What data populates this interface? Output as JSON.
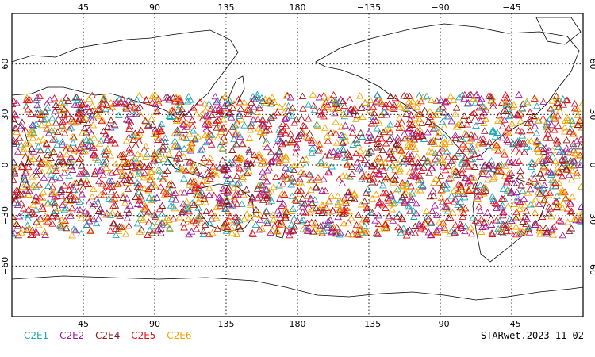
{
  "map": {
    "projection": "cylindrical",
    "lon_center": 180,
    "lat_range": [
      -90,
      90
    ],
    "lon_ticks": [
      "45",
      "90",
      "135",
      "180",
      "−135",
      "−90",
      "−45"
    ],
    "lat_ticks": [
      "60",
      "30",
      "0",
      "−30",
      "−60"
    ],
    "gridlines": true,
    "observation_lat_range": [
      -42,
      42
    ],
    "marker_shape": "triangle"
  },
  "legend": {
    "items": [
      {
        "label": "C2E1",
        "color": "#1aa7b8"
      },
      {
        "label": "C2E2",
        "color": "#a01aa0"
      },
      {
        "label": "C2E4",
        "color": "#8b1a1a"
      },
      {
        "label": "C2E5",
        "color": "#e0101a"
      },
      {
        "label": "C2E6",
        "color": "#f0a500"
      }
    ]
  },
  "caption": "STARwet.2023-11-02"
}
